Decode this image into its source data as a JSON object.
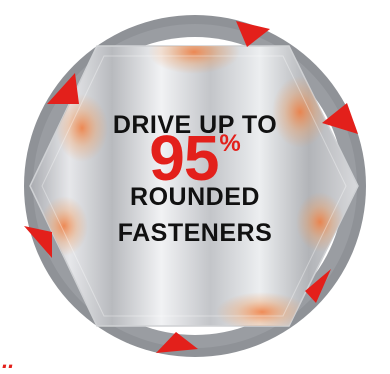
{
  "badge": {
    "line1": "DRIVE UP TO",
    "number": "95",
    "percent": "%",
    "line3": "ROUNDED",
    "line4": "FASTENERS"
  },
  "footer_mark": "..",
  "colors": {
    "accent_red": "#e3201b",
    "ring": "#8f9297",
    "text": "#111111"
  }
}
